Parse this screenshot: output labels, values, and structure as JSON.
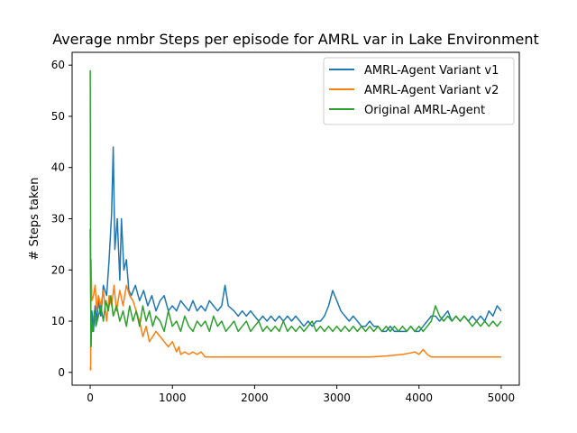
{
  "chart_data": {
    "type": "line",
    "title": "Average nmbr Steps per episode for AMRL var in Lake Environment",
    "xlabel": "",
    "ylabel": "# Steps taken",
    "xlim": [
      -220,
      5220
    ],
    "ylim": [
      -2.5,
      62.5
    ],
    "xticks": [
      0,
      1000,
      2000,
      3000,
      4000,
      5000
    ],
    "yticks": [
      0,
      10,
      20,
      30,
      40,
      50,
      60
    ],
    "grid": false,
    "legend_position": "top-right",
    "series": [
      {
        "name": "AMRL-Agent Variant v1",
        "color": "#1f77b4",
        "points": [
          [
            0,
            28
          ],
          [
            10,
            5
          ],
          [
            20,
            12
          ],
          [
            40,
            8
          ],
          [
            60,
            13
          ],
          [
            80,
            10
          ],
          [
            100,
            14
          ],
          [
            130,
            11
          ],
          [
            160,
            17
          ],
          [
            200,
            15
          ],
          [
            230,
            22
          ],
          [
            260,
            31
          ],
          [
            280,
            44
          ],
          [
            300,
            24
          ],
          [
            330,
            30
          ],
          [
            360,
            18
          ],
          [
            380,
            30
          ],
          [
            410,
            20
          ],
          [
            440,
            22
          ],
          [
            470,
            16
          ],
          [
            500,
            15
          ],
          [
            550,
            17
          ],
          [
            600,
            14
          ],
          [
            650,
            16
          ],
          [
            700,
            13
          ],
          [
            750,
            15
          ],
          [
            800,
            12
          ],
          [
            850,
            14
          ],
          [
            900,
            15
          ],
          [
            950,
            12
          ],
          [
            1000,
            13
          ],
          [
            1050,
            12
          ],
          [
            1100,
            14
          ],
          [
            1150,
            13
          ],
          [
            1200,
            12
          ],
          [
            1250,
            14
          ],
          [
            1300,
            12
          ],
          [
            1350,
            13
          ],
          [
            1400,
            12
          ],
          [
            1450,
            14
          ],
          [
            1500,
            13
          ],
          [
            1550,
            12
          ],
          [
            1600,
            13
          ],
          [
            1640,
            17
          ],
          [
            1680,
            13
          ],
          [
            1750,
            12
          ],
          [
            1800,
            11
          ],
          [
            1850,
            12
          ],
          [
            1900,
            11
          ],
          [
            1950,
            12
          ],
          [
            2000,
            11
          ],
          [
            2050,
            10
          ],
          [
            2100,
            11
          ],
          [
            2150,
            10
          ],
          [
            2200,
            11
          ],
          [
            2250,
            10
          ],
          [
            2300,
            11
          ],
          [
            2350,
            10
          ],
          [
            2400,
            11
          ],
          [
            2450,
            10
          ],
          [
            2500,
            11
          ],
          [
            2550,
            10
          ],
          [
            2600,
            9
          ],
          [
            2650,
            10
          ],
          [
            2700,
            9
          ],
          [
            2750,
            10
          ],
          [
            2800,
            10
          ],
          [
            2850,
            11
          ],
          [
            2900,
            13
          ],
          [
            2950,
            16
          ],
          [
            3000,
            14
          ],
          [
            3050,
            12
          ],
          [
            3100,
            11
          ],
          [
            3150,
            10
          ],
          [
            3200,
            11
          ],
          [
            3250,
            10
          ],
          [
            3300,
            9
          ],
          [
            3350,
            9
          ],
          [
            3400,
            10
          ],
          [
            3450,
            9
          ],
          [
            3500,
            9
          ],
          [
            3550,
            8
          ],
          [
            3600,
            8
          ],
          [
            3650,
            9
          ],
          [
            3700,
            8
          ],
          [
            3750,
            8
          ],
          [
            3800,
            8
          ],
          [
            3850,
            8
          ],
          [
            3900,
            9
          ],
          [
            3950,
            8
          ],
          [
            4000,
            8
          ],
          [
            4050,
            9
          ],
          [
            4100,
            10
          ],
          [
            4150,
            11
          ],
          [
            4200,
            11
          ],
          [
            4250,
            10
          ],
          [
            4300,
            11
          ],
          [
            4350,
            12
          ],
          [
            4400,
            10
          ],
          [
            4450,
            11
          ],
          [
            4500,
            10
          ],
          [
            4550,
            11
          ],
          [
            4600,
            10
          ],
          [
            4650,
            11
          ],
          [
            4700,
            10
          ],
          [
            4750,
            11
          ],
          [
            4800,
            10
          ],
          [
            4850,
            12
          ],
          [
            4900,
            11
          ],
          [
            4950,
            13
          ],
          [
            5000,
            12
          ]
        ]
      },
      {
        "name": "AMRL-Agent Variant v2",
        "color": "#ff7f0e",
        "points": [
          [
            0,
            1
          ],
          [
            5,
            0.5
          ],
          [
            10,
            22
          ],
          [
            20,
            14
          ],
          [
            40,
            15
          ],
          [
            60,
            17
          ],
          [
            80,
            12
          ],
          [
            100,
            15
          ],
          [
            130,
            13
          ],
          [
            160,
            16
          ],
          [
            200,
            10
          ],
          [
            230,
            15
          ],
          [
            260,
            13
          ],
          [
            290,
            17
          ],
          [
            320,
            12
          ],
          [
            360,
            16
          ],
          [
            400,
            13
          ],
          [
            440,
            17
          ],
          [
            480,
            15
          ],
          [
            520,
            14
          ],
          [
            560,
            12
          ],
          [
            600,
            10
          ],
          [
            640,
            7
          ],
          [
            680,
            9
          ],
          [
            720,
            6
          ],
          [
            760,
            7
          ],
          [
            800,
            8
          ],
          [
            850,
            7
          ],
          [
            900,
            6
          ],
          [
            950,
            5
          ],
          [
            1000,
            6
          ],
          [
            1050,
            4
          ],
          [
            1080,
            5
          ],
          [
            1100,
            3.5
          ],
          [
            1150,
            4
          ],
          [
            1200,
            3.5
          ],
          [
            1250,
            4
          ],
          [
            1300,
            3.5
          ],
          [
            1350,
            4
          ],
          [
            1400,
            3
          ],
          [
            1450,
            3
          ],
          [
            1500,
            3
          ],
          [
            1600,
            3
          ],
          [
            1700,
            3
          ],
          [
            1800,
            3
          ],
          [
            1900,
            3
          ],
          [
            2000,
            3
          ],
          [
            2200,
            3
          ],
          [
            2400,
            3
          ],
          [
            2600,
            3
          ],
          [
            2800,
            3
          ],
          [
            3000,
            3
          ],
          [
            3200,
            3
          ],
          [
            3400,
            3
          ],
          [
            3600,
            3.2
          ],
          [
            3800,
            3.5
          ],
          [
            3900,
            3.8
          ],
          [
            3950,
            4
          ],
          [
            4000,
            3.5
          ],
          [
            4050,
            4.5
          ],
          [
            4100,
            3.5
          ],
          [
            4150,
            3
          ],
          [
            4200,
            3
          ],
          [
            4400,
            3
          ],
          [
            4600,
            3
          ],
          [
            4800,
            3
          ],
          [
            5000,
            3
          ]
        ]
      },
      {
        "name": "Original AMRL-Agent",
        "color": "#2ca02c",
        "points": [
          [
            0,
            59
          ],
          [
            8,
            5
          ],
          [
            15,
            10
          ],
          [
            30,
            8
          ],
          [
            50,
            12
          ],
          [
            70,
            9
          ],
          [
            100,
            11
          ],
          [
            130,
            13
          ],
          [
            160,
            10
          ],
          [
            190,
            14
          ],
          [
            220,
            12
          ],
          [
            250,
            15
          ],
          [
            280,
            11
          ],
          [
            320,
            13
          ],
          [
            360,
            10
          ],
          [
            400,
            12
          ],
          [
            440,
            9
          ],
          [
            480,
            13
          ],
          [
            520,
            10
          ],
          [
            560,
            12
          ],
          [
            600,
            9
          ],
          [
            640,
            13
          ],
          [
            680,
            10
          ],
          [
            720,
            12
          ],
          [
            760,
            9
          ],
          [
            800,
            11
          ],
          [
            850,
            10
          ],
          [
            900,
            8
          ],
          [
            950,
            12
          ],
          [
            1000,
            9
          ],
          [
            1050,
            10
          ],
          [
            1100,
            8
          ],
          [
            1150,
            11
          ],
          [
            1200,
            9
          ],
          [
            1250,
            8
          ],
          [
            1300,
            10
          ],
          [
            1350,
            9
          ],
          [
            1400,
            10
          ],
          [
            1450,
            8
          ],
          [
            1500,
            11
          ],
          [
            1550,
            9
          ],
          [
            1600,
            10
          ],
          [
            1650,
            8
          ],
          [
            1700,
            9
          ],
          [
            1750,
            10
          ],
          [
            1800,
            8
          ],
          [
            1850,
            9
          ],
          [
            1900,
            10
          ],
          [
            1950,
            8
          ],
          [
            2000,
            9
          ],
          [
            2050,
            10
          ],
          [
            2100,
            8
          ],
          [
            2150,
            9
          ],
          [
            2200,
            8
          ],
          [
            2250,
            9
          ],
          [
            2300,
            8
          ],
          [
            2350,
            10
          ],
          [
            2400,
            8
          ],
          [
            2450,
            9
          ],
          [
            2500,
            8
          ],
          [
            2550,
            9
          ],
          [
            2600,
            8
          ],
          [
            2650,
            9
          ],
          [
            2700,
            10
          ],
          [
            2750,
            8
          ],
          [
            2800,
            9
          ],
          [
            2850,
            8
          ],
          [
            2900,
            9
          ],
          [
            2950,
            8
          ],
          [
            3000,
            9
          ],
          [
            3050,
            8
          ],
          [
            3100,
            9
          ],
          [
            3150,
            8
          ],
          [
            3200,
            9
          ],
          [
            3250,
            8
          ],
          [
            3300,
            9
          ],
          [
            3350,
            8
          ],
          [
            3400,
            9
          ],
          [
            3450,
            8
          ],
          [
            3500,
            9
          ],
          [
            3550,
            8
          ],
          [
            3600,
            9
          ],
          [
            3650,
            8
          ],
          [
            3700,
            9
          ],
          [
            3750,
            8
          ],
          [
            3800,
            9
          ],
          [
            3850,
            8
          ],
          [
            3900,
            9
          ],
          [
            3950,
            8
          ],
          [
            4000,
            9
          ],
          [
            4050,
            8
          ],
          [
            4100,
            9
          ],
          [
            4150,
            10
          ],
          [
            4200,
            13
          ],
          [
            4250,
            11
          ],
          [
            4300,
            10
          ],
          [
            4350,
            11
          ],
          [
            4400,
            10
          ],
          [
            4450,
            11
          ],
          [
            4500,
            10
          ],
          [
            4550,
            11
          ],
          [
            4600,
            10
          ],
          [
            4650,
            9
          ],
          [
            4700,
            10
          ],
          [
            4750,
            9
          ],
          [
            4800,
            10
          ],
          [
            4850,
            9
          ],
          [
            4900,
            10
          ],
          [
            4950,
            9
          ],
          [
            5000,
            10
          ]
        ]
      }
    ]
  }
}
